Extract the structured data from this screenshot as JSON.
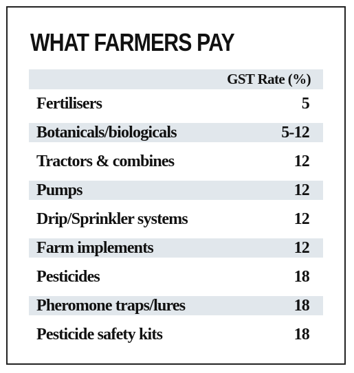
{
  "title": "WHAT FARMERS PAY",
  "table": {
    "header": "GST Rate (%)",
    "rows": [
      {
        "item": "Fertilisers",
        "rate": "5"
      },
      {
        "item": "Botanicals/biologicals",
        "rate": "5-12"
      },
      {
        "item": "Tractors & combines",
        "rate": "12"
      },
      {
        "item": "Pumps",
        "rate": "12"
      },
      {
        "item": "Drip/Sprinkler systems",
        "rate": "12"
      },
      {
        "item": "Farm implements",
        "rate": "12"
      },
      {
        "item": "Pesticides",
        "rate": "18"
      },
      {
        "item": "Pheromone traps/lures",
        "rate": "18"
      },
      {
        "item": "Pesticide safety kits",
        "rate": "18"
      }
    ]
  },
  "colors": {
    "band": "#e1e7ec",
    "text": "#111111",
    "border": "#222222"
  }
}
